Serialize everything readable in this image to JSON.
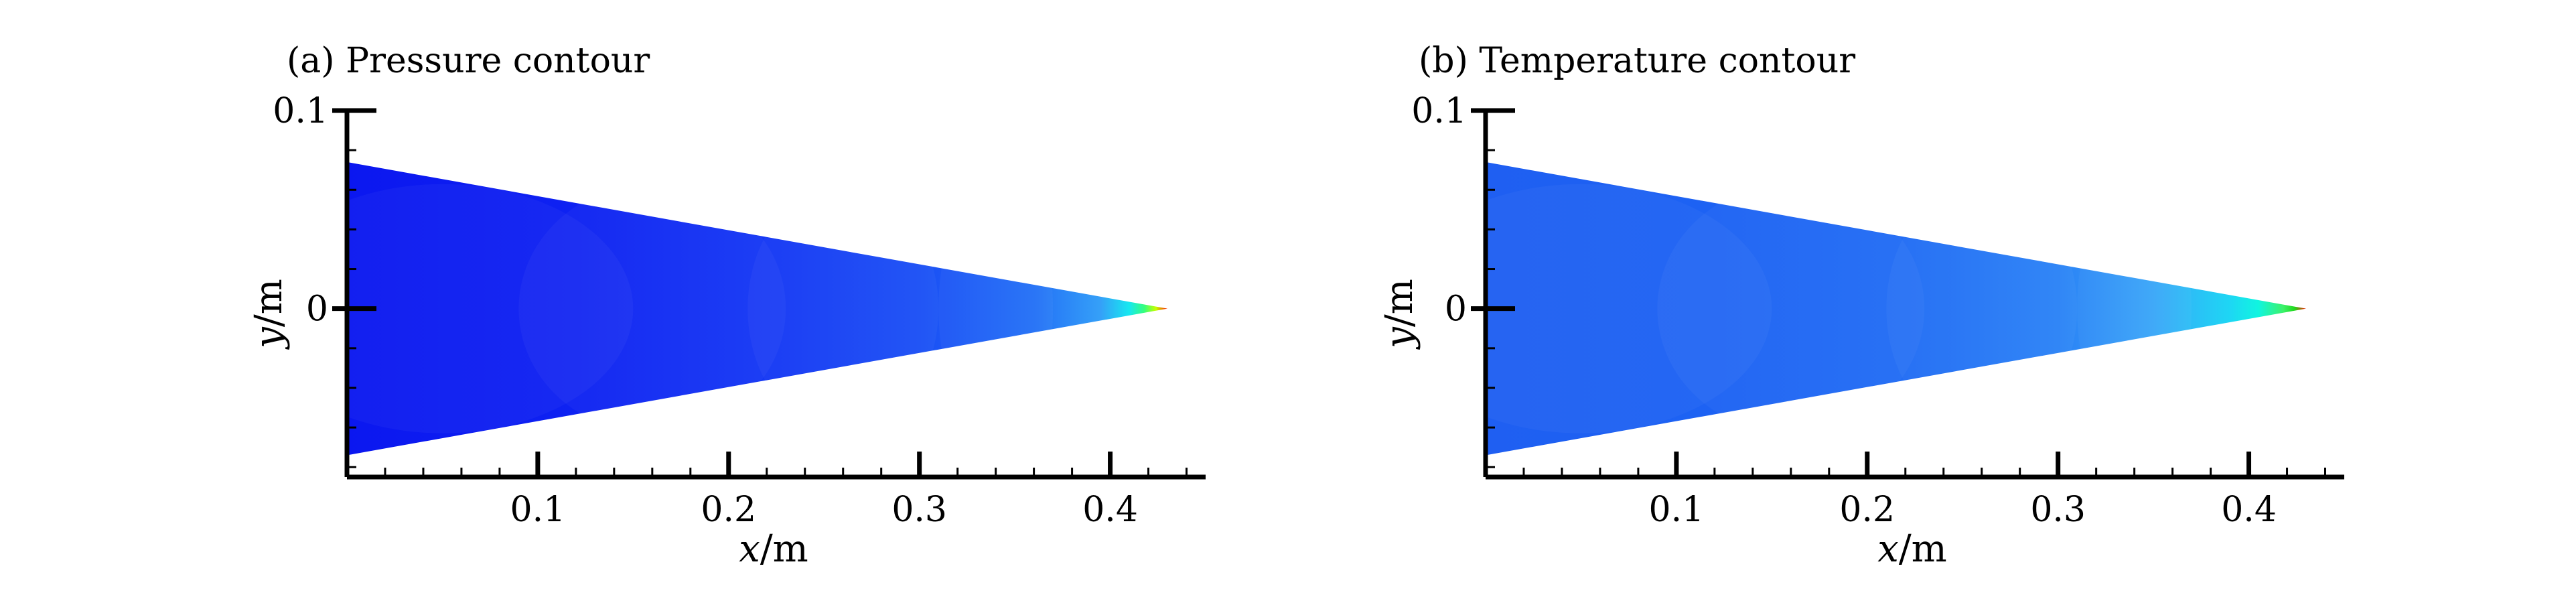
{
  "chart_data": [
    {
      "type": "heatmap",
      "title": "(a) Pressure contour",
      "xlabel_var": "x",
      "xlabel_unit": "/m",
      "ylabel_var": "y",
      "ylabel_unit": "/m",
      "xlim": [
        0.0,
        0.45
      ],
      "ylim": [
        -0.085,
        0.1
      ],
      "x_major_ticks": [
        0.1,
        0.2,
        0.3,
        0.4
      ],
      "x_tick_labels": [
        "0.1",
        "0.2",
        "0.3",
        "0.4"
      ],
      "y_major_ticks": [
        0,
        0.1
      ],
      "y_tick_labels": [
        "0",
        "0.1"
      ],
      "grid": false,
      "domain": {
        "apex_x": 0.43,
        "apex_y": 0.0,
        "base_x": 0.0,
        "base_half_height": 0.074
      },
      "color_field": [
        {
          "x": 0.0,
          "color": "#0b17f0"
        },
        {
          "x": 0.12,
          "color": "#0e22f2"
        },
        {
          "x": 0.22,
          "color": "#1437f4"
        },
        {
          "x": 0.3,
          "color": "#1a4ff5"
        },
        {
          "x": 0.36,
          "color": "#2370f6"
        },
        {
          "x": 0.395,
          "color": "#35a0f8"
        },
        {
          "x": 0.41,
          "color": "#16e8f0"
        },
        {
          "x": 0.418,
          "color": "#36ff7a"
        },
        {
          "x": 0.424,
          "color": "#c8ff00"
        },
        {
          "x": 0.43,
          "color": "#ff1a00"
        }
      ]
    },
    {
      "type": "heatmap",
      "title": "(b) Temperature contour",
      "xlabel_var": "x",
      "xlabel_unit": "/m",
      "ylabel_var": "y",
      "ylabel_unit": "/m",
      "xlim": [
        0.0,
        0.45
      ],
      "ylim": [
        -0.085,
        0.1
      ],
      "x_major_ticks": [
        0.1,
        0.2,
        0.3,
        0.4
      ],
      "x_tick_labels": [
        "0.1",
        "0.2",
        "0.3",
        "0.4"
      ],
      "y_major_ticks": [
        0,
        0.1
      ],
      "y_tick_labels": [
        "0",
        "0.1"
      ],
      "grid": false,
      "domain": {
        "apex_x": 0.43,
        "apex_y": 0.0,
        "base_x": 0.0,
        "base_half_height": 0.074
      },
      "color_field": [
        {
          "x": 0.0,
          "color": "#1f5ff2"
        },
        {
          "x": 0.12,
          "color": "#1d62f3"
        },
        {
          "x": 0.22,
          "color": "#216cf4"
        },
        {
          "x": 0.3,
          "color": "#2a82f6"
        },
        {
          "x": 0.35,
          "color": "#3aa6f8"
        },
        {
          "x": 0.39,
          "color": "#1ed6f4"
        },
        {
          "x": 0.405,
          "color": "#10f5e0"
        },
        {
          "x": 0.418,
          "color": "#3cf26a"
        },
        {
          "x": 0.424,
          "color": "#20d81c"
        },
        {
          "x": 0.43,
          "color": "#ff1a00"
        }
      ]
    }
  ]
}
